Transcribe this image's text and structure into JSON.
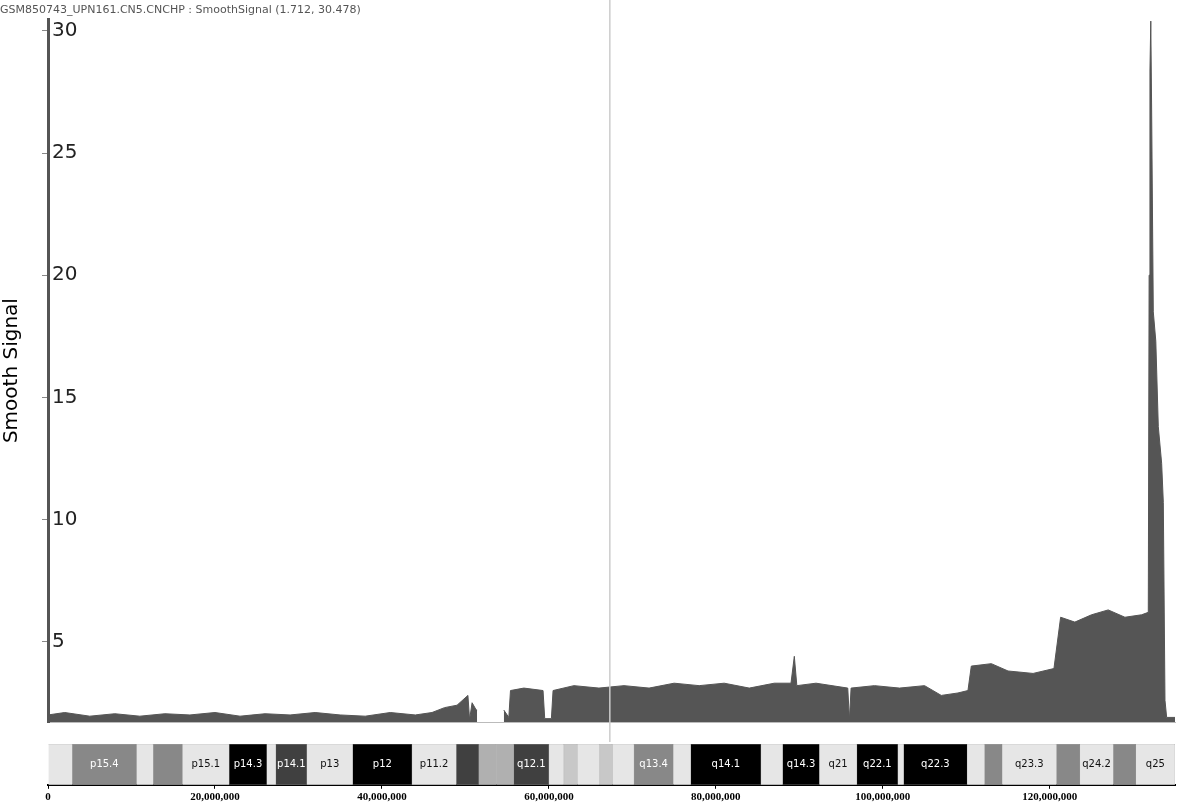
{
  "chart_data": [
    {
      "type": "area",
      "title": "GSM850743_UPN161.CN5.CNCHP : SmoothSignal (1.712, 30.478)",
      "ylabel": "Smooth Signal",
      "x": [
        0,
        2000000,
        5000000,
        8000000,
        11000000,
        14000000,
        17000000,
        20000000,
        23000000,
        26000000,
        29000000,
        32000000,
        35000000,
        38000000,
        41000000,
        44000000,
        46000000,
        47500000,
        49000000,
        50300000,
        50500000,
        50800000,
        51300000,
        51400000,
        52500000,
        54600000,
        55200000,
        55400000,
        57000000,
        59300000,
        59500000,
        60300000,
        60500000,
        63000000,
        66000000,
        69000000,
        72000000,
        75000000,
        78000000,
        81000000,
        84000000,
        87000000,
        89000000,
        89400000,
        89700000,
        92000000,
        95800000,
        96000000,
        96200000,
        99000000,
        102000000,
        105000000,
        107000000,
        109000000,
        110200000,
        110600000,
        113000000,
        115000000,
        118000000,
        120500000,
        121300000,
        123000000,
        125000000,
        127000000,
        129000000,
        131000000,
        131800000,
        131900000,
        132000000,
        132100000,
        132200000,
        132400000,
        132700000,
        133000000,
        133400000,
        133600000,
        133800000,
        134000000,
        135000000
      ],
      "series": [
        {
          "color": "#555555",
          "values": [
            2.0,
            2.1,
            1.95,
            2.05,
            1.95,
            2.05,
            2.0,
            2.1,
            1.95,
            2.05,
            2.0,
            2.1,
            2.0,
            1.95,
            2.1,
            2.0,
            2.1,
            2.3,
            2.4,
            2.8,
            1.8,
            2.5,
            2.2,
            2.2,
            null,
            2.2,
            1.9,
            3.0,
            3.1,
            3.0,
            1.85,
            1.85,
            3.0,
            3.2,
            3.1,
            3.2,
            3.1,
            3.3,
            3.2,
            3.3,
            3.1,
            3.3,
            3.3,
            4.4,
            3.2,
            3.3,
            3.1,
            1.8,
            3.1,
            3.2,
            3.1,
            3.2,
            2.8,
            2.9,
            3.0,
            4.0,
            4.1,
            3.8,
            3.7,
            3.9,
            6.0,
            5.8,
            6.1,
            6.3,
            6.0,
            6.1,
            6.2,
            20.0,
            28.4,
            30.4,
            26.8,
            18.5,
            17.3,
            13.8,
            12.3,
            10.7,
            2.6,
            1.9,
            1.9
          ]
        }
      ],
      "xlim": [
        0,
        135000000
      ],
      "ylim": [
        1.712,
        30.478
      ],
      "yticks": [
        5,
        10,
        15,
        20,
        25,
        30
      ],
      "tick_labels": "y",
      "grid": false,
      "legend": false,
      "ref_lines": [
        {
          "axis": "x",
          "value": 67300000,
          "color": "#cccccc"
        }
      ]
    },
    {
      "type": "bar",
      "orientation": "horizontal",
      "stacked": true,
      "categories": [
        null
      ],
      "xlim": [
        0,
        135000000
      ],
      "xticks": [
        {
          "value": 0,
          "label": "0"
        },
        {
          "value": 20000000,
          "label": "20,000,000"
        },
        {
          "value": 40000000,
          "label": "40,000,000"
        },
        {
          "value": 60000000,
          "label": "60,000,000"
        },
        {
          "value": 80000000,
          "label": "80,000,000"
        },
        {
          "value": 100000000,
          "label": "100,000,000"
        },
        {
          "value": 120000000,
          "label": "120,000,000"
        }
      ],
      "tick_labels": "x",
      "grid": false,
      "legend": false,
      "series": [
        {
          "color": "#e6e6e6",
          "values": [
            2900000
          ]
        },
        {
          "name": "p15.4",
          "color": "#888888",
          "values": [
            7700000
          ]
        },
        {
          "color": "#e6e6e6",
          "values": [
            2000000
          ]
        },
        {
          "color": "#888888",
          "values": [
            3500000
          ]
        },
        {
          "name": "p15.1",
          "color": "#e6e6e6",
          "values": [
            5600000
          ]
        },
        {
          "name": "p14.3",
          "color": "#000000",
          "values": [
            4500000
          ]
        },
        {
          "color": "#e6e6e6",
          "values": [
            1100000
          ]
        },
        {
          "name": "p14.1",
          "color": "#404040",
          "values": [
            3700000
          ]
        },
        {
          "name": "p13",
          "color": "#e6e6e6",
          "values": [
            5500000
          ]
        },
        {
          "name": "p12",
          "color": "#000000",
          "values": [
            7100000
          ]
        },
        {
          "name": "p11.2",
          "color": "#e6e6e6",
          "values": [
            5300000
          ]
        },
        {
          "color": "#404040",
          "values": [
            2700000
          ]
        },
        {
          "color": "#b0b0b0",
          "values": [
            2100000
          ]
        },
        {
          "color": "#b0b0b0",
          "values": [
            2100000
          ]
        },
        {
          "name": "q12.1",
          "color": "#404040",
          "values": [
            4200000
          ]
        },
        {
          "color": "#e6e6e6",
          "values": [
            1800000
          ]
        },
        {
          "color": "#c8c8c8",
          "values": [
            1600000
          ]
        },
        {
          "color": "#e6e6e6",
          "values": [
            2700000
          ]
        },
        {
          "color": "#c8c8c8",
          "values": [
            1500000
          ]
        },
        {
          "color": "#e6e6e6",
          "values": [
            2600000
          ]
        },
        {
          "name": "q13.4",
          "color": "#888888",
          "values": [
            4700000
          ]
        },
        {
          "color": "#e6e6e6",
          "values": [
            2100000
          ]
        },
        {
          "name": "q14.1",
          "color": "#000000",
          "values": [
            8400000
          ]
        },
        {
          "color": "#e6e6e6",
          "values": [
            2600000
          ]
        },
        {
          "name": "q14.3",
          "color": "#000000",
          "values": [
            4400000
          ]
        },
        {
          "name": "q21",
          "color": "#e6e6e6",
          "values": [
            4500000
          ]
        },
        {
          "name": "q22.1",
          "color": "#000000",
          "values": [
            4900000
          ]
        },
        {
          "color": "#e6e6e6",
          "values": [
            700000
          ]
        },
        {
          "name": "q22.3",
          "color": "#000000",
          "values": [
            7600000
          ]
        },
        {
          "color": "#e6e6e6",
          "values": [
            2100000
          ]
        },
        {
          "color": "#888888",
          "values": [
            2100000
          ]
        },
        {
          "name": "q23.3",
          "color": "#e6e6e6",
          "values": [
            6500000
          ]
        },
        {
          "color": "#888888",
          "values": [
            2800000
          ]
        },
        {
          "name": "q24.2",
          "color": "#e6e6e6",
          "values": [
            4000000
          ]
        },
        {
          "color": "#888888",
          "values": [
            2700000
          ]
        },
        {
          "name": "q25",
          "color": "#e6e6e6",
          "values": [
            4700000
          ]
        }
      ]
    }
  ]
}
